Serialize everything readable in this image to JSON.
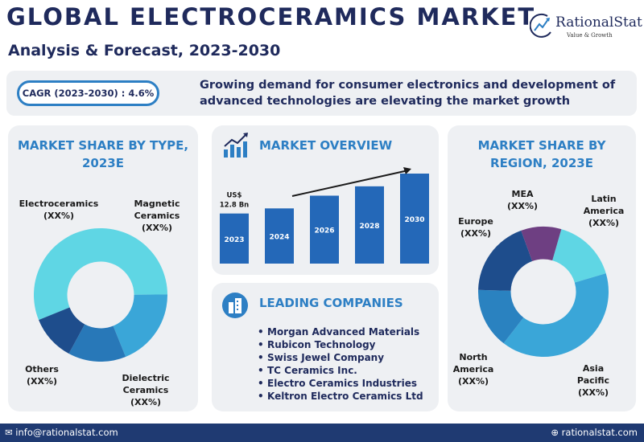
{
  "header": {
    "title": "GLOBAL ELECTROCERAMICS MARKET",
    "subtitle": "Analysis & Forecast, 2023-2030",
    "logo_name": "RationalStat",
    "logo_tagline": "Value & Growth"
  },
  "banner": {
    "cagr": "CAGR (2023-2030) : 4.6%",
    "text": "Growing demand for consumer electronics and development of advanced technologies are elevating the market growth"
  },
  "colors": {
    "navy": "#1f2a5c",
    "accent_blue": "#2d7fc4",
    "panel_bg": "#eef0f3",
    "bar_blue": "#2468b8",
    "footer_bg": "#1f3a72"
  },
  "chart_data": [
    {
      "type": "pie",
      "title": "MARKET SHARE BY TYPE, 2023E",
      "slices": [
        {
          "name": "Electroceramics",
          "label": "(XX%)",
          "share": 0.56,
          "color": "#5fd6e4"
        },
        {
          "name": "Magnetic Ceramics",
          "label": "(XX%)",
          "share": 0.19,
          "color": "#3aa6d8"
        },
        {
          "name": "Dielectric Ceramics",
          "label": "(XX%)",
          "share": 0.14,
          "color": "#2878b8"
        },
        {
          "name": "Others",
          "label": "(XX%)",
          "share": 0.11,
          "color": "#1e4d8c"
        }
      ]
    },
    {
      "type": "bar",
      "title": "MARKET OVERVIEW",
      "categories": [
        "2023",
        "2024",
        "2026",
        "2028",
        "2030"
      ],
      "values": [
        59,
        65,
        80,
        91,
        106
      ],
      "annotation": "US$ 12.8 Bn",
      "color": "#2468b8"
    },
    {
      "type": "pie",
      "title": "MARKET SHARE BY REGION, 2023E",
      "slices": [
        {
          "name": "Latin America",
          "label": "(XX%)",
          "share": 0.16,
          "color": "#5fd6e4"
        },
        {
          "name": "Asia Pacific",
          "label": "(XX%)",
          "share": 0.4,
          "color": "#3aa6d8"
        },
        {
          "name": "North America",
          "label": "(XX%)",
          "share": 0.15,
          "color": "#2a82c0"
        },
        {
          "name": "Europe",
          "label": "(XX%)",
          "share": 0.19,
          "color": "#1e4d8c"
        },
        {
          "name": "MEA",
          "label": "(XX%)",
          "share": 0.1,
          "color": "#6e3f82"
        }
      ]
    }
  ],
  "leading_companies": {
    "title": "LEADING COMPANIES",
    "items": [
      "Morgan Advanced Materials",
      "Rubicon Technology",
      "Swiss Jewel Company",
      "TC Ceramics Inc.",
      "Electro Ceramics Industries",
      "Keltron Electro Ceramics Ltd"
    ]
  },
  "footer": {
    "email": "info@rationalstat.com",
    "website": "rationalstat.com"
  }
}
